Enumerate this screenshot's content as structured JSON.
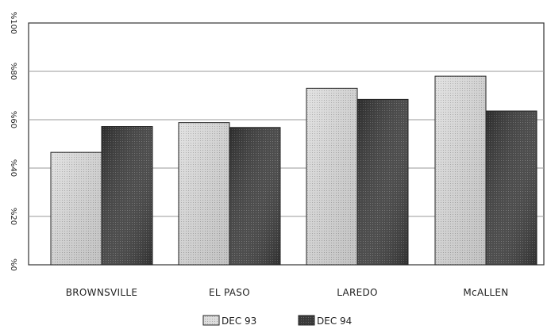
{
  "chart_data": {
    "type": "bar",
    "categories": [
      "BROWNSVILLE",
      "EL PASO",
      "LAREDO",
      "McALLEN"
    ],
    "series": [
      {
        "name": "DEC 93",
        "values": [
          46.5,
          58.8,
          73.0,
          78.0
        ]
      },
      {
        "name": "DEC 94",
        "values": [
          57.2,
          56.8,
          68.4,
          63.6
        ]
      }
    ],
    "title": "",
    "xlabel": "",
    "ylabel": "",
    "ylim": [
      0,
      100
    ],
    "yticks": [
      0,
      20,
      40,
      60,
      80,
      100
    ],
    "ytick_labels": [
      "%0",
      "%20",
      "%40",
      "%60",
      "%80",
      "%100"
    ],
    "grid": true,
    "legend_position": "bottom-center",
    "colors": {
      "dec93": "#d6d6d6",
      "dec94": "#3a3a3a",
      "grid": "#9a9a9a",
      "frame": "#333333"
    }
  }
}
